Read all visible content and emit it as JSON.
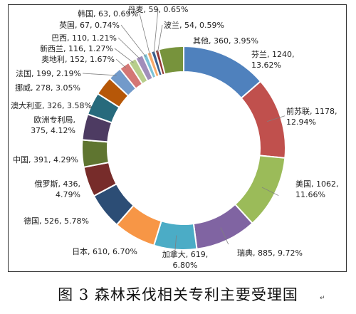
{
  "caption": "图 3  森林采伐相关专利主要受理国",
  "caption_mark": "↵",
  "chart_data": {
    "type": "pie",
    "variant": "donut",
    "title": "图 3  森林采伐相关专利主要受理国",
    "legend": "none",
    "slices": [
      {
        "name": "芬兰",
        "value": 1240,
        "percent": "13.62%",
        "color": "#4F81BD",
        "label": [
          "芬兰, 1240,",
          "13.62%"
        ]
      },
      {
        "name": "前苏联",
        "value": 1178,
        "percent": "12.94%",
        "color": "#C0504D",
        "label": [
          "前苏联, 1178,",
          "12.94%"
        ]
      },
      {
        "name": "美国",
        "value": 1062,
        "percent": "11.66%",
        "color": "#9BBB59",
        "label": [
          "美国, 1062,",
          "11.66%"
        ]
      },
      {
        "name": "瑞典",
        "value": 885,
        "percent": "9.72%",
        "color": "#8064A2",
        "label": [
          "瑞典, 885, 9.72%"
        ]
      },
      {
        "name": "加拿大",
        "value": 619,
        "percent": "6.80%",
        "color": "#4BACC6",
        "label": [
          "加拿大, 619,",
          "6.80%"
        ]
      },
      {
        "name": "日本",
        "value": 610,
        "percent": "6.70%",
        "color": "#F79646",
        "label": [
          "日本, 610, 6.70%"
        ]
      },
      {
        "name": "德国",
        "value": 526,
        "percent": "5.78%",
        "color": "#2C4D75",
        "label": [
          "德国, 526, 5.78%"
        ]
      },
      {
        "name": "俄罗斯",
        "value": 436,
        "percent": "4.79%",
        "color": "#772C2A",
        "label": [
          "俄罗斯, 436,",
          "4.79%"
        ]
      },
      {
        "name": "中国",
        "value": 391,
        "percent": "4.29%",
        "color": "#5F7530",
        "label": [
          "中国, 391, 4.29%"
        ]
      },
      {
        "name": "欧洲专利局",
        "value": 375,
        "percent": "4.12%",
        "color": "#4D3B62",
        "label": [
          "欧洲专利局,",
          "375, 4.12%"
        ]
      },
      {
        "name": "澳大利亚",
        "value": 326,
        "percent": "3.58%",
        "color": "#276A7C",
        "label": [
          "澳大利亚, 326, 3.58%"
        ]
      },
      {
        "name": "挪威",
        "value": 278,
        "percent": "3.05%",
        "color": "#B65708",
        "label": [
          "挪威, 278, 3.05%"
        ]
      },
      {
        "name": "法国",
        "value": 199,
        "percent": "2.19%",
        "color": "#729ACA",
        "label": [
          "法国, 199, 2.19%"
        ]
      },
      {
        "name": "奥地利",
        "value": 152,
        "percent": "1.67%",
        "color": "#D47775",
        "label": [
          "奥地利, 152, 1.67%"
        ]
      },
      {
        "name": "新西兰",
        "value": 116,
        "percent": "1.27%",
        "color": "#B8CE8C",
        "label": [
          "新西兰, 116, 1.27%"
        ]
      },
      {
        "name": "巴西",
        "value": 110,
        "percent": "1.21%",
        "color": "#A18EBA",
        "label": [
          "巴西, 110, 1.21%"
        ]
      },
      {
        "name": "英国",
        "value": 67,
        "percent": "0.74%",
        "color": "#7CC3D7",
        "label": [
          "英国, 67, 0.74%"
        ]
      },
      {
        "name": "韩国",
        "value": 63,
        "percent": "0.69%",
        "color": "#F9AB6B",
        "label": [
          "韩国, 63, 0.69%"
        ]
      },
      {
        "name": "丹麦",
        "value": 59,
        "percent": "0.65%",
        "color": "#3A5F8E",
        "label": [
          "丹麦, 59, 0.65%"
        ]
      },
      {
        "name": "波兰",
        "value": 54,
        "percent": "0.59%",
        "color": "#943634",
        "label": [
          "波兰, 54, 0.59%"
        ]
      },
      {
        "name": "其他",
        "value": 360,
        "percent": "3.95%",
        "color": "#77933C",
        "label": [
          "其他, 360, 3.95%"
        ]
      }
    ]
  }
}
